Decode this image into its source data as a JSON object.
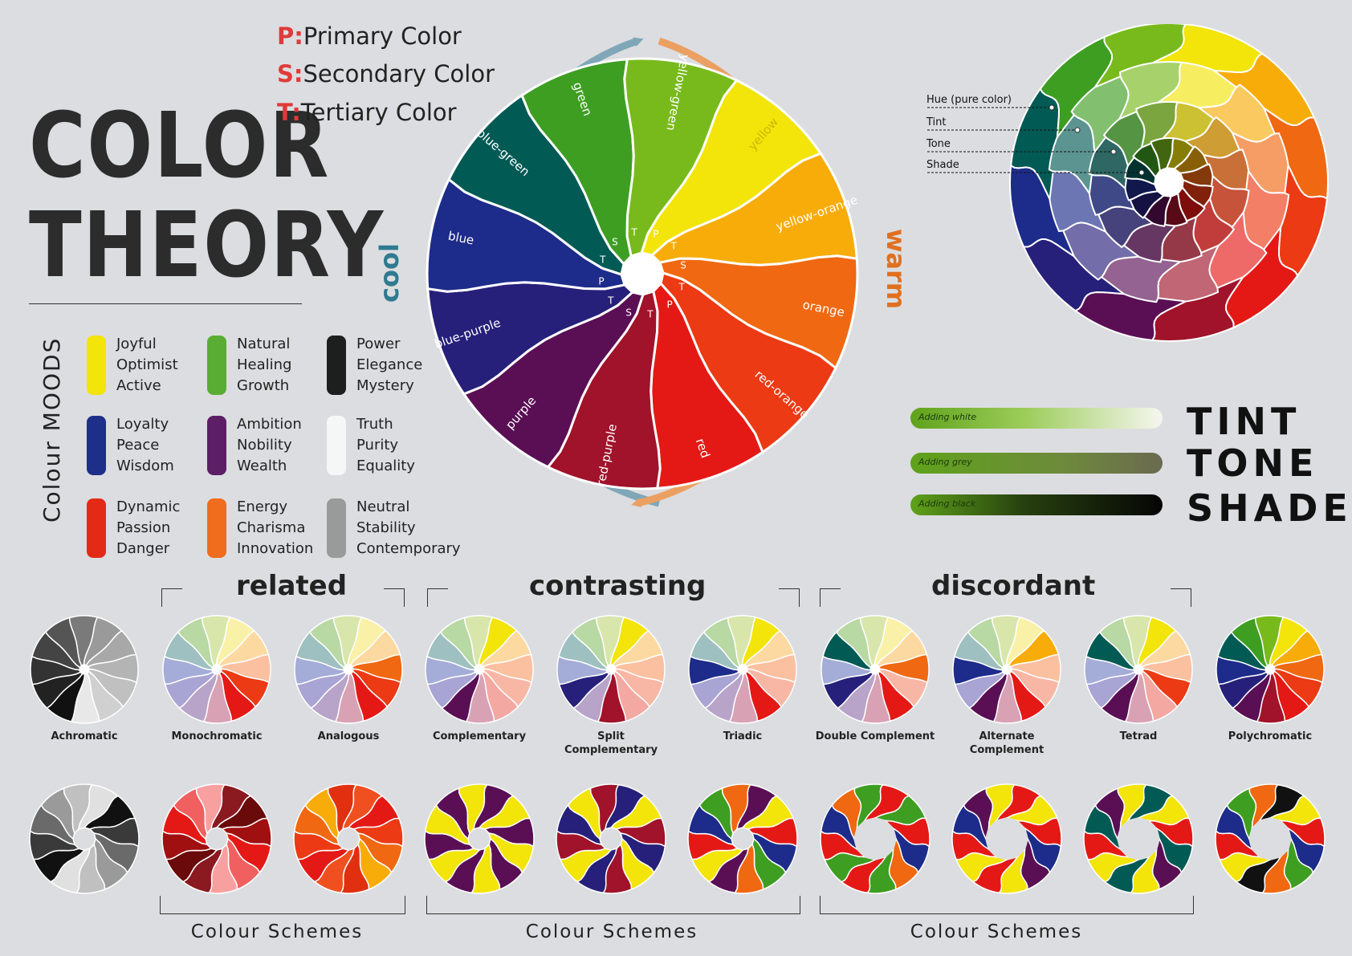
{
  "title": {
    "line1": "COLOR",
    "line2": "THEORY"
  },
  "legend": [
    {
      "key": "P:",
      "label": "Primary Color"
    },
    {
      "key": "S:",
      "label": "Secondary Color"
    },
    {
      "key": "T:",
      "label": "Tertiary Color"
    }
  ],
  "wheel": {
    "cool_label": "cool",
    "warm_label": "warm",
    "segments": [
      {
        "name": "yellow",
        "color": "#f3e40a",
        "tag": "P"
      },
      {
        "name": "yellow-orange",
        "color": "#f8ac0a",
        "tag": "T"
      },
      {
        "name": "orange",
        "color": "#f06812",
        "tag": "S"
      },
      {
        "name": "red-orange",
        "color": "#eb3a14",
        "tag": "T"
      },
      {
        "name": "red",
        "color": "#e41916",
        "tag": "P"
      },
      {
        "name": "red-purple",
        "color": "#a0132a",
        "tag": "T"
      },
      {
        "name": "purple",
        "color": "#5a0f55",
        "tag": "S"
      },
      {
        "name": "blue-purple",
        "color": "#27207a",
        "tag": "T"
      },
      {
        "name": "blue",
        "color": "#1d2c8a",
        "tag": "P"
      },
      {
        "name": "blue-green",
        "color": "#025a55",
        "tag": "T"
      },
      {
        "name": "green",
        "color": "#3e9e22",
        "tag": "S"
      },
      {
        "name": "yellow-green",
        "color": "#78ba1c",
        "tag": "T"
      }
    ]
  },
  "tint_wheel_annotations": [
    "Hue (pure color)",
    "Tint",
    "Tone",
    "Shade"
  ],
  "moods": {
    "title": "Colour MOODS",
    "items": [
      {
        "color": "#f3e40a",
        "words": [
          "Joyful",
          "Optimist",
          "Active"
        ]
      },
      {
        "color": "#59ad32",
        "words": [
          "Natural",
          "Healing",
          "Growth"
        ]
      },
      {
        "color": "#1e1e1e",
        "words": [
          "Power",
          "Elegance",
          "Mystery"
        ]
      },
      {
        "color": "#1e2f8a",
        "words": [
          "Loyalty",
          "Peace",
          "Wisdom"
        ]
      },
      {
        "color": "#5c1f66",
        "words": [
          "Ambition",
          "Nobility",
          "Wealth"
        ]
      },
      {
        "color": "#f6f6f6",
        "words": [
          "Truth",
          "Purity",
          "Equality"
        ]
      },
      {
        "color": "#e32a16",
        "words": [
          "Dynamic",
          "Passion",
          "Danger"
        ]
      },
      {
        "color": "#ef6d1c",
        "words": [
          "Energy",
          "Charisma",
          "Innovation"
        ]
      },
      {
        "color": "#9a9a9a",
        "words": [
          "Neutral",
          "Stability",
          "Contemporary"
        ]
      }
    ]
  },
  "tint_tone_shade": {
    "words": [
      "TINT",
      "TONE",
      "SHADE"
    ],
    "bars": [
      "Adding white",
      "Adding grey",
      "Adding black"
    ]
  },
  "categories": [
    "related",
    "contrasting",
    "discordant"
  ],
  "schemes": [
    {
      "label": "Achromatic"
    },
    {
      "label": "Monochromatic"
    },
    {
      "label": "Analogous"
    },
    {
      "label": "Complementary"
    },
    {
      "label": "Split Complementary"
    },
    {
      "label": "Triadic"
    },
    {
      "label": "Double Complement"
    },
    {
      "label": "Alternate Complement"
    },
    {
      "label": "Tetrad"
    },
    {
      "label": "Polychromatic"
    }
  ],
  "colour_schemes_label": "Colour Schemes"
}
